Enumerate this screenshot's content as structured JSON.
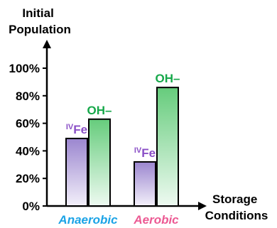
{
  "chart_data": {
    "type": "bar",
    "ylabel": "Initial Population",
    "xlabel": "Storage Conditions",
    "ylim": [
      0,
      100
    ],
    "yticks": [
      "0%",
      "20%",
      "40%",
      "60%",
      "80%",
      "100%"
    ],
    "ytick_values": [
      0,
      20,
      40,
      60,
      80,
      100
    ],
    "categories": [
      "Anaerobic",
      "Aerobic"
    ],
    "series": [
      {
        "label_sup": "IV",
        "label": "Fe",
        "values": [
          49,
          32
        ]
      },
      {
        "label": "OH–",
        "values": [
          63,
          86
        ]
      }
    ],
    "grid": false,
    "legend": "none"
  },
  "colors": {
    "fe_label": "#8a4fc6",
    "fe_fill_top": "#9b86cf",
    "fe_fill_bottom": "#f3f0fa",
    "oh_label": "#16a84a",
    "oh_fill_top": "#66cc7c",
    "oh_fill_bottom": "#eefaf1",
    "anaerobic": "#1ba3e6",
    "aerobic": "#ec5a93",
    "axis": "#000000"
  }
}
